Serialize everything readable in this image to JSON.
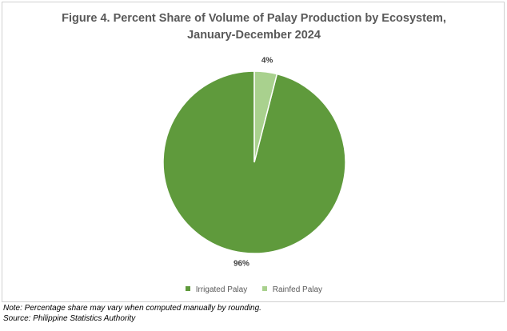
{
  "chart_data": {
    "type": "pie",
    "title_line1": "Figure 4. Percent Share of Volume of Palay Production by Ecosystem,",
    "title_line2": "January-December 2024",
    "categories": [
      "Irrigated Palay",
      "Rainfed Palay"
    ],
    "values": [
      96,
      4
    ],
    "data_labels": [
      "96%",
      "4%"
    ],
    "colors": [
      "#5f9a3c",
      "#a9d18e"
    ],
    "legend_placement": "bottom"
  },
  "notes": {
    "line1": "Note: Percentage share may vary when computed manually by rounding.",
    "line2": "Source: Philippine Statistics Authority"
  }
}
